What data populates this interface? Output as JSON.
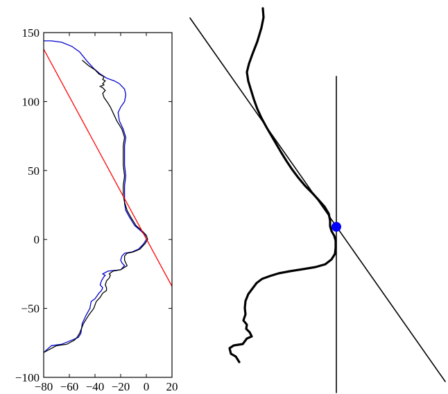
{
  "chart_data": [
    {
      "type": "line",
      "title": "",
      "xlabel": "",
      "ylabel": "",
      "xlim": [
        -80,
        20
      ],
      "ylim": [
        -100,
        150
      ],
      "xticks": [
        -80,
        -60,
        -40,
        -20,
        0,
        20
      ],
      "yticks": [
        -100,
        -50,
        0,
        50,
        100,
        150
      ],
      "xtick_labels": [
        "−80",
        "−60",
        "−40",
        "−20",
        "0",
        "20"
      ],
      "ytick_labels": [
        "−100",
        "−50",
        "0",
        "50",
        "100",
        "150"
      ],
      "grid": false,
      "series": [
        {
          "color": "#0000cc",
          "points": [
            [
              -80,
              -82
            ],
            [
              -74,
              -77
            ],
            [
              -66,
              -76
            ],
            [
              -58,
              -73
            ],
            [
              -53,
              -71
            ],
            [
              -51,
              -68
            ],
            [
              -50,
              -61
            ],
            [
              -47,
              -55
            ],
            [
              -44,
              -50
            ],
            [
              -43,
              -45
            ],
            [
              -40,
              -43
            ],
            [
              -37,
              -39
            ],
            [
              -35,
              -37
            ],
            [
              -34,
              -35
            ],
            [
              -36,
              -33
            ],
            [
              -35,
              -30
            ],
            [
              -33,
              -27
            ],
            [
              -32,
              -26
            ],
            [
              -34,
              -25
            ],
            [
              -30,
              -23
            ],
            [
              -20,
              -22
            ],
            [
              -17,
              -19
            ],
            [
              -19,
              -17
            ],
            [
              -20,
              -15
            ],
            [
              -19,
              -12
            ],
            [
              -17,
              -10
            ],
            [
              -11,
              -9
            ],
            [
              -6,
              -7
            ],
            [
              -2,
              -3
            ],
            [
              0,
              0
            ],
            [
              -1,
              3
            ],
            [
              -4,
              6
            ],
            [
              -9,
              10
            ],
            [
              -13,
              16
            ],
            [
              -16,
              21
            ],
            [
              -17,
              26
            ],
            [
              -17,
              32
            ],
            [
              -17,
              39
            ],
            [
              -16,
              46
            ],
            [
              -17,
              54
            ],
            [
              -17,
              61
            ],
            [
              -17,
              68
            ],
            [
              -16,
              74
            ],
            [
              -18,
              80
            ],
            [
              -21,
              86
            ],
            [
              -22,
              92
            ],
            [
              -20,
              96
            ],
            [
              -17,
              100
            ],
            [
              -16,
              105
            ],
            [
              -17,
              109
            ],
            [
              -21,
              113
            ],
            [
              -25,
              115
            ],
            [
              -31,
              117
            ],
            [
              -36,
              120
            ],
            [
              -41,
              124
            ],
            [
              -46,
              129
            ],
            [
              -52,
              136
            ],
            [
              -58,
              140
            ],
            [
              -66,
              143
            ],
            [
              -74,
              144
            ],
            [
              -80,
              144
            ]
          ]
        },
        {
          "color": "#000000",
          "points": [
            [
              -80,
              -82
            ],
            [
              -70,
              -77
            ],
            [
              -62,
              -76
            ],
            [
              -56,
              -73
            ],
            [
              -54,
              -71
            ],
            [
              -52,
              -68
            ],
            [
              -49,
              -61
            ],
            [
              -45,
              -55
            ],
            [
              -41,
              -50
            ],
            [
              -39,
              -45
            ],
            [
              -36,
              -42
            ],
            [
              -34,
              -39
            ],
            [
              -31,
              -37
            ],
            [
              -31,
              -35
            ],
            [
              -32,
              -33
            ],
            [
              -31,
              -30
            ],
            [
              -29,
              -28
            ],
            [
              -28,
              -26
            ],
            [
              -29,
              -25
            ],
            [
              -26,
              -23
            ],
            [
              -20,
              -22
            ],
            [
              -15,
              -19
            ],
            [
              -16,
              -17
            ],
            [
              -17,
              -15
            ],
            [
              -17,
              -12
            ],
            [
              -15,
              -10
            ],
            [
              -10,
              -9
            ],
            [
              -5,
              -7
            ],
            [
              -1,
              -3
            ],
            [
              1,
              0
            ],
            [
              0,
              3
            ],
            [
              -3,
              6
            ],
            [
              -8,
              10
            ],
            [
              -12,
              16
            ],
            [
              -15,
              21
            ],
            [
              -17,
              27
            ],
            [
              -18,
              32
            ],
            [
              -18,
              39
            ],
            [
              -17,
              46
            ],
            [
              -18,
              54
            ],
            [
              -18,
              61
            ],
            [
              -18,
              68
            ],
            [
              -17,
              74
            ],
            [
              -19,
              80
            ],
            [
              -23,
              86
            ],
            [
              -26,
              92
            ],
            [
              -28,
              96
            ],
            [
              -30,
              99
            ],
            [
              -33,
              103
            ],
            [
              -34,
              106
            ],
            [
              -32,
              108
            ],
            [
              -34,
              110
            ],
            [
              -36,
              111
            ],
            [
              -33,
              112
            ],
            [
              -34,
              113
            ],
            [
              -32,
              115
            ],
            [
              -34,
              116
            ],
            [
              -33,
              118
            ],
            [
              -37,
              120
            ],
            [
              -40,
              123
            ],
            [
              -45,
              126
            ],
            [
              -50,
              130
            ]
          ]
        },
        {
          "color": "#ff0000",
          "points": [
            [
              -80,
              138
            ],
            [
              20,
              -34
            ]
          ]
        }
      ]
    },
    {
      "type": "line",
      "title": "",
      "xlabel": "",
      "ylabel": "",
      "axes": false,
      "series": [
        {
          "color": "#000000",
          "role": "thick profile trace",
          "points": [
            [
              379,
              12
            ],
            [
              380,
              25
            ],
            [
              377,
              40
            ],
            [
              371,
              60
            ],
            [
              364,
              78
            ],
            [
              359,
              92
            ],
            [
              356,
              104
            ],
            [
              358,
              117
            ],
            [
              362,
              130
            ],
            [
              366,
              143
            ],
            [
              371,
              157
            ],
            [
              377,
              170
            ],
            [
              384,
              183
            ],
            [
              391,
              195
            ],
            [
              398,
              207
            ],
            [
              405,
              219
            ],
            [
              413,
              232
            ],
            [
              421,
              244
            ],
            [
              430,
              256
            ],
            [
              440,
              268
            ],
            [
              451,
              279
            ],
            [
              460,
              289
            ],
            [
              468,
              298
            ],
            [
              474,
              308
            ],
            [
              476,
              318
            ],
            [
              476,
              326
            ],
            [
              478,
              333
            ],
            [
              482,
              340
            ],
            [
              484,
              347
            ],
            [
              484,
              357
            ],
            [
              483,
              366
            ],
            [
              478,
              374
            ],
            [
              469,
              381
            ],
            [
              455,
              385
            ],
            [
              437,
              388
            ],
            [
              418,
              391
            ],
            [
              402,
              394
            ],
            [
              389,
              398
            ],
            [
              378,
              402
            ],
            [
              370,
              408
            ],
            [
              364,
              416
            ],
            [
              358,
              424
            ],
            [
              354,
              434
            ],
            [
              353,
              444
            ],
            [
              354,
              453
            ],
            [
              351,
              462
            ],
            [
              356,
              468
            ],
            [
              355,
              474
            ],
            [
              360,
              479
            ],
            [
              363,
              485
            ],
            [
              356,
              488
            ],
            [
              350,
              496
            ],
            [
              337,
              498
            ],
            [
              331,
              502
            ],
            [
              333,
              510
            ],
            [
              340,
              514
            ],
            [
              345,
              522
            ]
          ]
        },
        {
          "color": "#000000",
          "role": "diagonal reference line",
          "points": [
            [
              274,
              26
            ],
            [
              642,
              550
            ]
          ]
        },
        {
          "color": "#000000",
          "role": "vertical reference line",
          "points": [
            [
              485,
              110
            ],
            [
              485,
              566
            ]
          ]
        }
      ],
      "marker": {
        "color": "#0000ff",
        "point": [
          485,
          327
        ]
      }
    }
  ]
}
